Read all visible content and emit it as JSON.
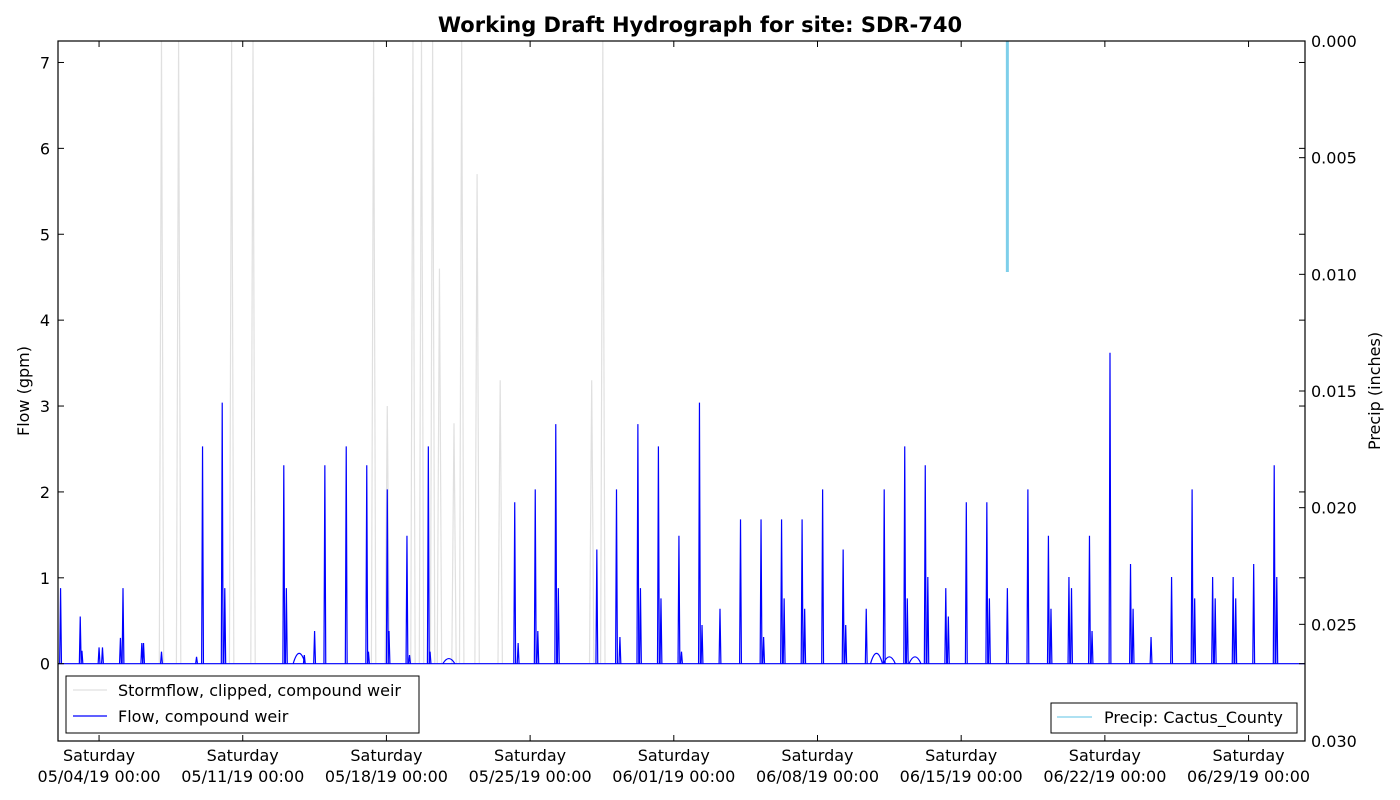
{
  "chart_data": {
    "type": "line",
    "title": "Working Draft Hydrograph for site: SDR-740",
    "ylabel": "Flow (gpm)",
    "y2label": "Precip (inches)",
    "ylim": [
      -0.9,
      7.25
    ],
    "yticks": [
      0,
      1,
      2,
      3,
      4,
      5,
      6,
      7
    ],
    "y2lim": [
      0.0,
      0.03
    ],
    "y2inverted": true,
    "y2ticks": [
      0.0,
      0.005,
      0.01,
      0.015,
      0.02,
      0.025,
      0.03
    ],
    "y2ticklabels": [
      "0.000",
      "0.005",
      "0.010",
      "0.015",
      "0.020",
      "0.025",
      "0.030"
    ],
    "xlim": [
      "2019-05-02 00:00",
      "2019-07-01 18:00"
    ],
    "xticks": [
      {
        "date": "2019-05-04 00:00",
        "line1": "Saturday",
        "line2": "05/04/19 00:00"
      },
      {
        "date": "2019-05-11 00:00",
        "line1": "Saturday",
        "line2": "05/11/19 00:00"
      },
      {
        "date": "2019-05-18 00:00",
        "line1": "Saturday",
        "line2": "05/18/19 00:00"
      },
      {
        "date": "2019-05-25 00:00",
        "line1": "Saturday",
        "line2": "05/25/19 00:00"
      },
      {
        "date": "2019-06-01 00:00",
        "line1": "Saturday",
        "line2": "06/01/19 00:00"
      },
      {
        "date": "2019-06-08 00:00",
        "line1": "Saturday",
        "line2": "06/08/19 00:00"
      },
      {
        "date": "2019-06-15 00:00",
        "line1": "Saturday",
        "line2": "06/15/19 00:00"
      },
      {
        "date": "2019-06-22 00:00",
        "line1": "Saturday",
        "line2": "06/22/19 00:00"
      },
      {
        "date": "2019-06-29 00:00",
        "line1": "Saturday",
        "line2": "06/29/19 00:00"
      }
    ],
    "legend_left": {
      "placement": "lower-left",
      "entries": [
        "Stormflow, clipped, compound weir",
        "Flow, compound weir"
      ]
    },
    "legend_right": {
      "placement": "lower-right",
      "entries": [
        "Precip: Cactus_County"
      ]
    },
    "series": [
      {
        "name": "Stormflow, clipped, compound weir",
        "axis": "left",
        "color": "#e0e0e0",
        "spikes": [
          {
            "t": "2019-05-07 01:00",
            "v": 7.25
          },
          {
            "t": "2019-05-07 21:00",
            "v": 7.25
          },
          {
            "t": "2019-05-10 11:00",
            "v": 7.25
          },
          {
            "t": "2019-05-11 12:00",
            "v": 7.25
          },
          {
            "t": "2019-05-17 09:00",
            "v": 7.25
          },
          {
            "t": "2019-05-18 01:00",
            "v": 3.0
          },
          {
            "t": "2019-05-19 07:00",
            "v": 7.25
          },
          {
            "t": "2019-05-19 17:00",
            "v": 7.25
          },
          {
            "t": "2019-05-20 06:00",
            "v": 7.25
          },
          {
            "t": "2019-05-20 14:00",
            "v": 4.6
          },
          {
            "t": "2019-05-21 07:00",
            "v": 2.8
          },
          {
            "t": "2019-05-21 16:00",
            "v": 7.25
          },
          {
            "t": "2019-05-22 10:00",
            "v": 5.7
          },
          {
            "t": "2019-05-23 13:00",
            "v": 3.3
          },
          {
            "t": "2019-05-28 00:00",
            "v": 3.3
          },
          {
            "t": "2019-05-28 13:00",
            "v": 7.25
          }
        ]
      },
      {
        "name": "Flow, compound weir",
        "axis": "left",
        "color": "#0000ff",
        "spikes": [
          {
            "t": "2019-05-02 03:00",
            "v": 0.88
          },
          {
            "t": "2019-05-03 02:00",
            "v": 0.55
          },
          {
            "t": "2019-05-03 04:00",
            "v": 0.15
          },
          {
            "t": "2019-05-04 00:00",
            "v": 0.19
          },
          {
            "t": "2019-05-04 04:00",
            "v": 0.19
          },
          {
            "t": "2019-05-05 01:00",
            "v": 0.3
          },
          {
            "t": "2019-05-05 04:00",
            "v": 0.88
          },
          {
            "t": "2019-05-06 02:00",
            "v": 0.24
          },
          {
            "t": "2019-05-06 04:00",
            "v": 0.24
          },
          {
            "t": "2019-05-07 01:00",
            "v": 0.14
          },
          {
            "t": "2019-05-08 18:00",
            "v": 0.08
          },
          {
            "t": "2019-05-09 01:00",
            "v": 2.53
          },
          {
            "t": "2019-05-10 00:00",
            "v": 3.04
          },
          {
            "t": "2019-05-10 03:00",
            "v": 0.88
          },
          {
            "t": "2019-05-13 00:00",
            "v": 2.31
          },
          {
            "t": "2019-05-13 03:00",
            "v": 0.88
          },
          {
            "t": "2019-05-14 00:00",
            "v": 0.1
          },
          {
            "t": "2019-05-14 12:00",
            "v": 0.38
          },
          {
            "t": "2019-05-15 00:00",
            "v": 2.31
          },
          {
            "t": "2019-05-16 01:00",
            "v": 2.53
          },
          {
            "t": "2019-05-17 01:00",
            "v": 2.31
          },
          {
            "t": "2019-05-17 03:00",
            "v": 0.14
          },
          {
            "t": "2019-05-18 01:00",
            "v": 2.03
          },
          {
            "t": "2019-05-18 03:00",
            "v": 0.38
          },
          {
            "t": "2019-05-19 00:00",
            "v": 1.49
          },
          {
            "t": "2019-05-19 03:00",
            "v": 0.1
          },
          {
            "t": "2019-05-20 01:00",
            "v": 2.53
          },
          {
            "t": "2019-05-20 03:00",
            "v": 0.14
          },
          {
            "t": "2019-05-24 06:00",
            "v": 1.88
          },
          {
            "t": "2019-05-24 10:00",
            "v": 0.24
          },
          {
            "t": "2019-05-25 06:00",
            "v": 2.03
          },
          {
            "t": "2019-05-25 09:00",
            "v": 0.38
          },
          {
            "t": "2019-05-26 06:00",
            "v": 2.79
          },
          {
            "t": "2019-05-26 09:00",
            "v": 0.88
          },
          {
            "t": "2019-05-28 06:00",
            "v": 1.33
          },
          {
            "t": "2019-05-29 05:00",
            "v": 2.03
          },
          {
            "t": "2019-05-29 09:00",
            "v": 0.31
          },
          {
            "t": "2019-05-30 06:00",
            "v": 2.79
          },
          {
            "t": "2019-05-30 09:00",
            "v": 0.88
          },
          {
            "t": "2019-05-31 06:00",
            "v": 2.53
          },
          {
            "t": "2019-05-31 09:00",
            "v": 0.76
          },
          {
            "t": "2019-06-01 06:00",
            "v": 1.49
          },
          {
            "t": "2019-06-01 09:00",
            "v": 0.14
          },
          {
            "t": "2019-06-02 06:00",
            "v": 3.04
          },
          {
            "t": "2019-06-02 09:00",
            "v": 0.45
          },
          {
            "t": "2019-06-03 06:00",
            "v": 0.64
          },
          {
            "t": "2019-06-04 06:00",
            "v": 1.68
          },
          {
            "t": "2019-06-05 06:00",
            "v": 1.68
          },
          {
            "t": "2019-06-05 09:00",
            "v": 0.31
          },
          {
            "t": "2019-06-06 06:00",
            "v": 1.68
          },
          {
            "t": "2019-06-06 09:00",
            "v": 0.76
          },
          {
            "t": "2019-06-07 06:00",
            "v": 1.68
          },
          {
            "t": "2019-06-07 09:00",
            "v": 0.64
          },
          {
            "t": "2019-06-08 06:00",
            "v": 2.03
          },
          {
            "t": "2019-06-09 06:00",
            "v": 1.33
          },
          {
            "t": "2019-06-09 09:00",
            "v": 0.45
          },
          {
            "t": "2019-06-10 09:00",
            "v": 0.64
          },
          {
            "t": "2019-06-11 06:00",
            "v": 2.03
          },
          {
            "t": "2019-06-12 06:00",
            "v": 2.53
          },
          {
            "t": "2019-06-12 09:00",
            "v": 0.76
          },
          {
            "t": "2019-06-13 06:00",
            "v": 2.31
          },
          {
            "t": "2019-06-13 09:00",
            "v": 1.01
          },
          {
            "t": "2019-06-14 06:00",
            "v": 0.88
          },
          {
            "t": "2019-06-14 09:00",
            "v": 0.55
          },
          {
            "t": "2019-06-15 06:00",
            "v": 1.88
          },
          {
            "t": "2019-06-16 06:00",
            "v": 1.88
          },
          {
            "t": "2019-06-16 09:00",
            "v": 0.76
          },
          {
            "t": "2019-06-17 06:00",
            "v": 0.88
          },
          {
            "t": "2019-06-18 06:00",
            "v": 2.03
          },
          {
            "t": "2019-06-19 06:00",
            "v": 1.49
          },
          {
            "t": "2019-06-19 09:00",
            "v": 0.64
          },
          {
            "t": "2019-06-20 06:00",
            "v": 1.01
          },
          {
            "t": "2019-06-20 09:00",
            "v": 0.88
          },
          {
            "t": "2019-06-21 06:00",
            "v": 1.49
          },
          {
            "t": "2019-06-21 09:00",
            "v": 0.38
          },
          {
            "t": "2019-06-22 06:00",
            "v": 3.62
          },
          {
            "t": "2019-06-23 06:00",
            "v": 1.16
          },
          {
            "t": "2019-06-23 09:00",
            "v": 0.64
          },
          {
            "t": "2019-06-24 06:00",
            "v": 0.31
          },
          {
            "t": "2019-06-25 06:00",
            "v": 1.01
          },
          {
            "t": "2019-06-26 06:00",
            "v": 2.03
          },
          {
            "t": "2019-06-26 09:00",
            "v": 0.76
          },
          {
            "t": "2019-06-27 06:00",
            "v": 1.01
          },
          {
            "t": "2019-06-27 09:00",
            "v": 0.76
          },
          {
            "t": "2019-06-28 06:00",
            "v": 1.01
          },
          {
            "t": "2019-06-28 09:00",
            "v": 0.76
          },
          {
            "t": "2019-06-29 06:00",
            "v": 1.16
          },
          {
            "t": "2019-06-30 06:00",
            "v": 2.31
          },
          {
            "t": "2019-06-30 09:00",
            "v": 1.01
          }
        ],
        "bumps": [
          {
            "t": "2019-06-10 21:00",
            "v": 0.12
          },
          {
            "t": "2019-06-11 12:00",
            "v": 0.08
          },
          {
            "t": "2019-06-12 18:00",
            "v": 0.08
          },
          {
            "t": "2019-05-13 18:00",
            "v": 0.12
          },
          {
            "t": "2019-05-21 01:00",
            "v": 0.06
          }
        ]
      },
      {
        "name": "Precip: Cactus_County",
        "axis": "right",
        "color": "#7ecfea",
        "bars": [
          {
            "t": "2019-06-17 06:00",
            "v": 0.0099
          }
        ]
      }
    ]
  }
}
